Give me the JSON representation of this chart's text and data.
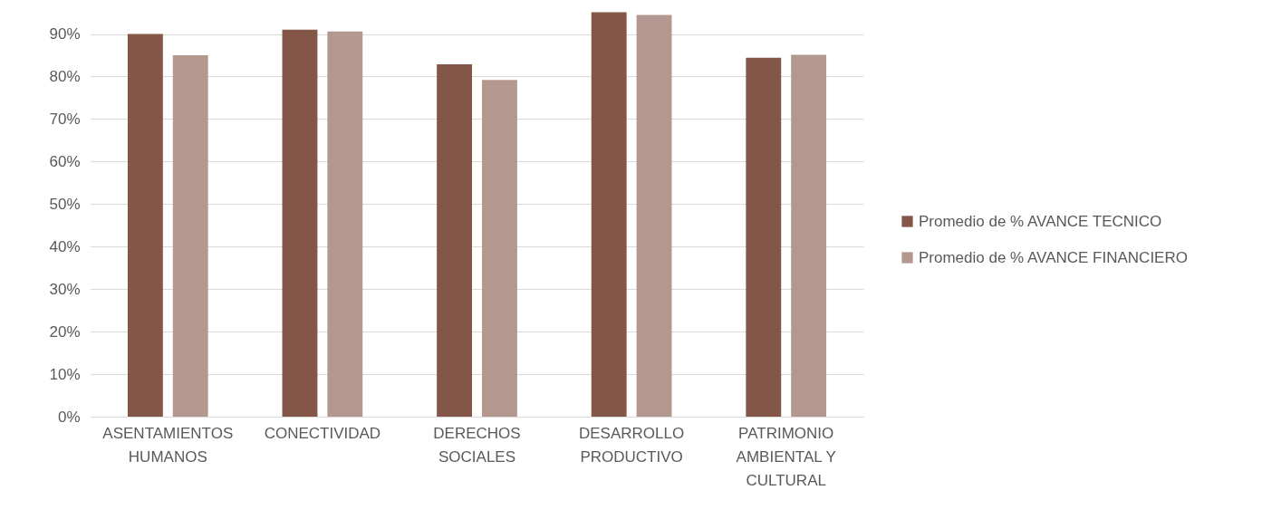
{
  "chart_data": {
    "type": "bar",
    "categories": [
      "ASENTAMIENTOS HUMANOS",
      "CONECTIVIDAD",
      "DERECHOS SOCIALES",
      "DESARROLLO PRODUCTIVO",
      "PATRIMONIO AMBIENTAL Y CULTURAL"
    ],
    "series": [
      {
        "name": "Promedio de % AVANCE TECNICO",
        "color": "#835647",
        "values": [
          90,
          91,
          82.9,
          95.1,
          84.4
        ]
      },
      {
        "name": "Promedio de % AVANCE FINANCIERO",
        "color": "#b49890",
        "values": [
          85,
          90.6,
          79.2,
          94.5,
          85.1
        ]
      }
    ],
    "ylim": [
      0,
      98
    ],
    "yticks": [
      {
        "value": 0,
        "label": "0%"
      },
      {
        "value": 10,
        "label": "10%"
      },
      {
        "value": 20,
        "label": "20%"
      },
      {
        "value": 30,
        "label": "30%"
      },
      {
        "value": 40,
        "label": "40%"
      },
      {
        "value": 50,
        "label": "50%"
      },
      {
        "value": 60,
        "label": "60%"
      },
      {
        "value": 70,
        "label": "70%"
      },
      {
        "value": 80,
        "label": "80%"
      },
      {
        "value": 90,
        "label": "90%"
      }
    ],
    "grid": "y",
    "legend": "right"
  }
}
